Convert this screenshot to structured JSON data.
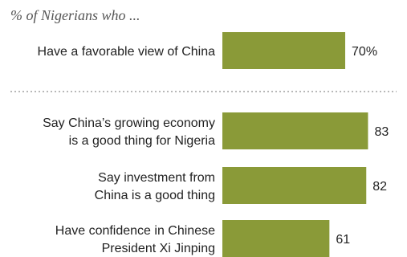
{
  "subtitle": "% of Nigerians who ...",
  "colors": {
    "bar": "#8a9a38",
    "divider": "#b8b8b8",
    "text": "#222222"
  },
  "chart_data": {
    "type": "bar",
    "orientation": "horizontal",
    "subtitle": "% of Nigerians who ...",
    "categories": [
      [
        "Have a favorable view of China"
      ],
      [
        "Say China’s growing economy",
        "is a good thing for Nigeria"
      ],
      [
        "Say investment from",
        "China is a good thing"
      ],
      [
        "Have confidence in Chinese",
        "President Xi Jinping"
      ]
    ],
    "values": [
      70,
      83,
      82,
      61
    ],
    "value_labels": [
      "70%",
      "83",
      "82",
      "61"
    ],
    "xlim": [
      0,
      100
    ],
    "grid": false,
    "divider_after_index": 0
  }
}
